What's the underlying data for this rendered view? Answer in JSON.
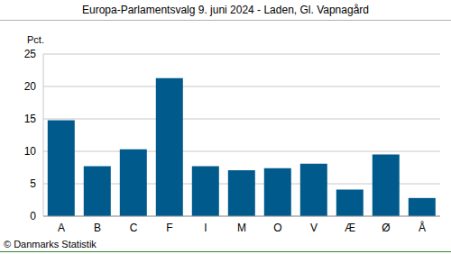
{
  "chart_data": {
    "type": "bar",
    "title": "Europa-Parlamentsvalg 9. juni 2024 - Laden, Gl. Vapnagård",
    "y_label": "Pct.",
    "source": "© Danmarks Statistik",
    "categories": [
      "A",
      "B",
      "C",
      "F",
      "I",
      "M",
      "O",
      "V",
      "Æ",
      "Ø",
      "Å"
    ],
    "values": [
      14.8,
      7.7,
      10.3,
      21.3,
      7.7,
      7.1,
      7.4,
      8.1,
      4.1,
      9.5,
      2.8
    ],
    "color": "#005b8c",
    "ylim": [
      0,
      25
    ],
    "yticks": [
      0,
      5,
      10,
      15,
      20,
      25
    ],
    "grid": true
  }
}
